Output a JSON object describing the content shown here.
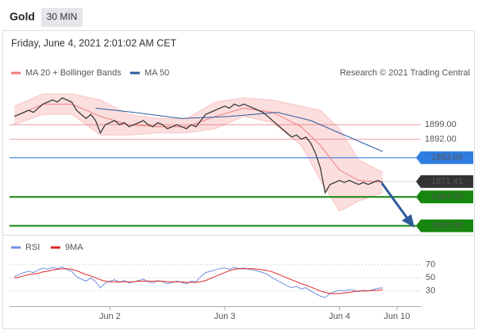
{
  "header": {
    "symbol": "Gold",
    "interval": "30 MIN",
    "timestamp": "Friday, June 4, 2021 2:01:02 AM CET"
  },
  "chart_data": [
    {
      "type": "line",
      "credit": "Research © 2021 Trading Central",
      "x": [
        -20,
        -19,
        -18,
        -17,
        -16,
        -15,
        -14,
        -13,
        -12,
        -11,
        -10,
        -9,
        -8,
        -7,
        -6,
        -5,
        -4,
        -3,
        -2,
        -1,
        0,
        1,
        2,
        3,
        4,
        5,
        6,
        7,
        8,
        9,
        10,
        11,
        12,
        13,
        14,
        15,
        16,
        17,
        18,
        19,
        20,
        21,
        22,
        23,
        24,
        25,
        26,
        27,
        28,
        29,
        30,
        31,
        32,
        33,
        34,
        35,
        36,
        37,
        38,
        39,
        40,
        41,
        42,
        43,
        44,
        45,
        46,
        47,
        48,
        49,
        50,
        51,
        52,
        53,
        54,
        55,
        56,
        57
      ],
      "values": [
        1903,
        1904,
        1905,
        1906,
        1905,
        1907,
        1909,
        1910,
        1911,
        1910,
        1912,
        1911,
        1910,
        1906,
        1904,
        1902,
        1904,
        1901,
        1895,
        1899,
        1900,
        1901,
        1899,
        1900,
        1898,
        1899,
        1900,
        1901,
        1899,
        1898,
        1900,
        1899,
        1897,
        1898,
        1899,
        1898,
        1897,
        1899,
        1898,
        1901,
        1904,
        1905,
        1906,
        1907,
        1908,
        1907,
        1909,
        1908,
        1909,
        1908,
        1907,
        1906,
        1905,
        1903,
        1901,
        1899,
        1897,
        1895,
        1893,
        1894,
        1892,
        1893,
        1890,
        1885,
        1878,
        1866,
        1870,
        1871,
        1872,
        1871,
        1872,
        1871,
        1870,
        1871,
        1870,
        1871,
        1872,
        1871
      ],
      "color": "#3a3a3a",
      "series": [
        {
          "name": "MA 20 + Bollinger Bands",
          "color": "#f07c7c",
          "x": [
            -20,
            -14,
            -8,
            -2,
            4,
            10,
            16,
            22,
            28,
            34,
            40,
            44,
            48,
            52,
            57
          ],
          "values": [
            1903,
            1909,
            1909,
            1903,
            1899,
            1898,
            1898,
            1903,
            1907,
            1905,
            1898,
            1889,
            1877,
            1872,
            1871
          ],
          "upper": [
            1908,
            1914,
            1914,
            1911,
            1904,
            1902,
            1902,
            1910,
            1912,
            1911,
            1908,
            1906,
            1897,
            1882,
            1876
          ],
          "lower": [
            1899,
            1904,
            1904,
            1894,
            1894,
            1895,
            1895,
            1897,
            1903,
            1900,
            1889,
            1872,
            1857,
            1862,
            1866
          ]
        },
        {
          "name": "MA 50",
          "color": "#2d5b9c",
          "x": [
            -3,
            5,
            15,
            25,
            35,
            42,
            47,
            52,
            57
          ],
          "values": [
            1907,
            1905,
            1902,
            1903,
            1905,
            1901,
            1896,
            1891,
            1886
          ]
        }
      ],
      "levels": [
        {
          "value": 1899,
          "label": "1899.00",
          "color": "#e25b5b",
          "style": "thin"
        },
        {
          "value": 1892,
          "label": "1892.00",
          "color": "#e25b5b",
          "style": "thin"
        },
        {
          "value": 1883,
          "label": "1883.00",
          "color": "#2f7de1",
          "style": "box"
        },
        {
          "value": 1871.41,
          "label": "1871.41",
          "color": "#333333",
          "style": "dotted"
        },
        {
          "value": 1864,
          "label": "1864.00",
          "color": "#16860f",
          "style": "thick"
        },
        {
          "value": 1850,
          "label": "1850.00",
          "color": "#16860f",
          "style": "thick"
        }
      ],
      "xlim": [
        -21,
        65
      ],
      "ylim": [
        1846,
        1921
      ]
    },
    {
      "type": "line",
      "x": [
        -20,
        -19,
        -18,
        -17,
        -16,
        -15,
        -14,
        -13,
        -12,
        -11,
        -10,
        -9,
        -8,
        -7,
        -6,
        -5,
        -4,
        -3,
        -2,
        -1,
        0,
        1,
        2,
        3,
        4,
        5,
        6,
        7,
        8,
        9,
        10,
        11,
        12,
        13,
        14,
        15,
        16,
        17,
        18,
        19,
        20,
        21,
        22,
        23,
        24,
        25,
        26,
        27,
        28,
        29,
        30,
        31,
        32,
        33,
        34,
        35,
        36,
        37,
        38,
        39,
        40,
        41,
        42,
        43,
        44,
        45,
        46,
        47,
        48,
        49,
        50,
        51,
        52,
        53,
        54,
        55,
        56,
        57
      ],
      "series": [
        {
          "name": "RSI",
          "color": "#7090e0",
          "values": [
            52,
            55,
            58,
            60,
            58,
            62,
            65,
            63,
            66,
            64,
            67,
            62,
            60,
            52,
            48,
            45,
            50,
            44,
            35,
            42,
            45,
            47,
            43,
            46,
            42,
            44,
            46,
            48,
            44,
            42,
            46,
            44,
            41,
            43,
            45,
            43,
            41,
            45,
            44,
            52,
            58,
            60,
            62,
            64,
            65,
            63,
            66,
            64,
            65,
            63,
            62,
            60,
            58,
            55,
            50,
            46,
            42,
            38,
            35,
            37,
            33,
            35,
            30,
            26,
            22,
            20,
            26,
            29,
            31,
            30,
            32,
            31,
            29,
            31,
            30,
            32,
            34,
            35
          ]
        },
        {
          "name": "9MA",
          "color": "#e02424",
          "values": [
            50,
            51,
            53,
            55,
            56,
            57,
            59,
            60,
            62,
            63,
            64,
            64,
            63,
            61,
            58,
            55,
            53,
            50,
            47,
            45,
            44,
            44,
            44,
            44,
            44,
            44,
            45,
            45,
            45,
            45,
            45,
            45,
            44,
            44,
            44,
            44,
            43,
            43,
            43,
            44,
            46,
            49,
            52,
            55,
            58,
            61,
            63,
            64,
            64,
            64,
            64,
            63,
            62,
            61,
            59,
            56,
            53,
            50,
            47,
            44,
            41,
            39,
            36,
            33,
            30,
            28,
            26,
            26,
            26,
            27,
            28,
            29,
            30,
            30,
            30,
            31,
            31,
            32
          ]
        }
      ],
      "xlim": [
        -21,
        65
      ],
      "ylim": [
        8,
        89
      ],
      "yticks": [
        70,
        50,
        30
      ],
      "xticks": [
        {
          "value": 0,
          "label": "Jun 2"
        },
        {
          "value": 24,
          "label": "Jun 3"
        },
        {
          "value": 48,
          "label": "Jun 4"
        },
        {
          "value": 60,
          "label": "Jun 10"
        }
      ]
    }
  ]
}
